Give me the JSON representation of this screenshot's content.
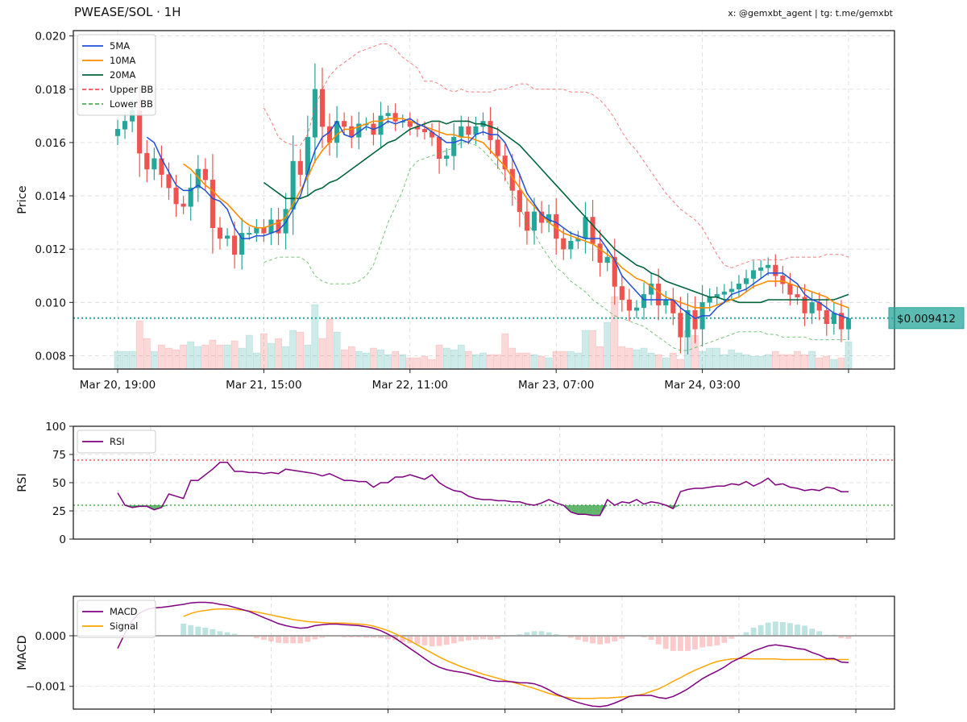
{
  "header": {
    "title": "PWEASE/SOL · 1H",
    "credit": "x: @gemxbt_agent | tg: t.me/gemxbt"
  },
  "price_tag": "$0.009412",
  "colors": {
    "up": "#26a69a",
    "down": "#ef5350",
    "ma5": "#1f4fd8",
    "ma10": "#ff8c00",
    "ma20": "#00643c",
    "bb_upper": "#ef5350",
    "bb_lower": "#4caf50",
    "rsi": "#800080",
    "macd": "#800080",
    "signal": "#ffa500",
    "current": "#26a69a"
  },
  "chart_data": [
    {
      "type": "candlestick",
      "ylabel": "Price",
      "ylim": [
        0.0075,
        0.0202
      ],
      "y_ticks": [
        "0.008",
        "0.010",
        "0.012",
        "0.014",
        "0.016",
        "0.018",
        "0.020"
      ],
      "y_tick_values": [
        0.008,
        0.01,
        0.012,
        0.014,
        0.016,
        0.018,
        0.02
      ],
      "x_tick_labels": [
        "Mar 20, 19:00",
        "Mar 21, 15:00",
        "Mar 22, 11:00",
        "Mar 23, 07:00",
        "Mar 24, 03:00"
      ],
      "x_tick_index": [
        0,
        20,
        40,
        60,
        80
      ],
      "current_price": 0.009412,
      "grid": true,
      "legend": {
        "position": "top-left",
        "entries": [
          {
            "key": "ma5",
            "label": "5MA",
            "style": "solid"
          },
          {
            "key": "ma10",
            "label": "10MA",
            "style": "solid"
          },
          {
            "key": "ma20",
            "label": "20MA",
            "style": "solid"
          },
          {
            "key": "bb_upper",
            "label": "Upper BB",
            "style": "dashed"
          },
          {
            "key": "bb_lower",
            "label": "Lower BB",
            "style": "dashed"
          }
        ]
      },
      "close_values": [
        0.0165,
        0.0168,
        0.0172,
        0.0156,
        0.015,
        0.0154,
        0.0148,
        0.0143,
        0.0137,
        0.0136,
        0.0143,
        0.015,
        0.0146,
        0.0128,
        0.0124,
        0.0125,
        0.0118,
        0.0126,
        0.0126,
        0.0128,
        0.0126,
        0.0131,
        0.0126,
        0.0135,
        0.0153,
        0.0148,
        0.0162,
        0.018,
        0.0166,
        0.016,
        0.0168,
        0.0166,
        0.0162,
        0.0167,
        0.0167,
        0.0163,
        0.017,
        0.0171,
        0.0168,
        0.0168,
        0.0166,
        0.0165,
        0.0164,
        0.0162,
        0.0154,
        0.0155,
        0.0162,
        0.0166,
        0.0163,
        0.0166,
        0.0168,
        0.0161,
        0.0155,
        0.015,
        0.0142,
        0.0134,
        0.0127,
        0.0134,
        0.013,
        0.0133,
        0.0124,
        0.012,
        0.0123,
        0.0124,
        0.0132,
        0.0122,
        0.0115,
        0.0117,
        0.0106,
        0.0101,
        0.0097,
        0.0098,
        0.0103,
        0.0107,
        0.0099,
        0.0101,
        0.0096,
        0.0087,
        0.0097,
        0.009,
        0.01,
        0.0102,
        0.0103,
        0.0104,
        0.0105,
        0.0107,
        0.0109,
        0.0112,
        0.0113,
        0.0114,
        0.011,
        0.0107,
        0.0103,
        0.0102,
        0.0096,
        0.01,
        0.0097,
        0.0092,
        0.0096,
        0.009,
        0.0094
      ],
      "ma5_values": [
        null,
        null,
        null,
        null,
        0.0162,
        0.016,
        0.0154,
        0.0149,
        0.0144,
        0.0142,
        0.0142,
        0.0144,
        0.0142,
        0.0139,
        0.0138,
        0.0135,
        0.0128,
        0.0124,
        0.0124,
        0.0125,
        0.0125,
        0.0126,
        0.0127,
        0.013,
        0.0135,
        0.014,
        0.0149,
        0.0157,
        0.0162,
        0.0164,
        0.0168,
        0.0163,
        0.0162,
        0.0164,
        0.0166,
        0.0165,
        0.0166,
        0.0168,
        0.0167,
        0.0168,
        0.0169,
        0.0167,
        0.0166,
        0.0164,
        0.0162,
        0.016,
        0.016,
        0.0161,
        0.016,
        0.0163,
        0.0164,
        0.0163,
        0.0163,
        0.016,
        0.0154,
        0.0148,
        0.0141,
        0.0137,
        0.0133,
        0.0131,
        0.013,
        0.0128,
        0.0126,
        0.0125,
        0.0124,
        0.0124,
        0.0124,
        0.012,
        0.0116,
        0.011,
        0.0107,
        0.0104,
        0.0101,
        0.0101,
        0.0101,
        0.0101,
        0.0101,
        0.0098,
        0.0096,
        0.0094,
        0.0095,
        0.0095,
        0.0098,
        0.01,
        0.0103,
        0.0104,
        0.0105,
        0.0107,
        0.0109,
        0.0111,
        0.0111,
        0.0111,
        0.0109,
        0.0107,
        0.0103,
        0.0101,
        0.01,
        0.0098,
        0.0096,
        0.0095,
        0.0094
      ],
      "ma10_values": [
        null,
        null,
        null,
        null,
        null,
        null,
        null,
        null,
        null,
        0.0152,
        0.015,
        0.0147,
        0.0144,
        0.0142,
        0.0139,
        0.0137,
        0.0134,
        0.0131,
        0.0129,
        0.0128,
        0.0128,
        0.0129,
        0.013,
        0.0132,
        0.0137,
        0.0142,
        0.0147,
        0.0153,
        0.0157,
        0.016,
        0.0163,
        0.0165,
        0.0165,
        0.0166,
        0.0167,
        0.0168,
        0.0168,
        0.0169,
        0.0169,
        0.0169,
        0.0168,
        0.0167,
        0.0166,
        0.0165,
        0.0164,
        0.0163,
        0.0163,
        0.0162,
        0.0162,
        0.0161,
        0.016,
        0.0157,
        0.0154,
        0.0151,
        0.0147,
        0.0143,
        0.0139,
        0.0136,
        0.0133,
        0.013,
        0.0128,
        0.0126,
        0.0125,
        0.0124,
        0.0123,
        0.0122,
        0.012,
        0.0118,
        0.0116,
        0.0113,
        0.0111,
        0.0109,
        0.0108,
        0.0106,
        0.0104,
        0.0102,
        0.0101,
        0.01,
        0.0099,
        0.0098,
        0.0098,
        0.0098,
        0.0099,
        0.01,
        0.0101,
        0.0102,
        0.0104,
        0.0106,
        0.0107,
        0.0108,
        0.0108,
        0.0108,
        0.0107,
        0.0106,
        0.0105,
        0.0104,
        0.0103,
        0.0102,
        0.01,
        0.0099,
        0.0098
      ],
      "ma20_values": [
        null,
        null,
        null,
        null,
        null,
        null,
        null,
        null,
        null,
        null,
        null,
        null,
        null,
        null,
        null,
        null,
        null,
        null,
        null,
        null,
        0.0145,
        0.0143,
        0.0141,
        0.0139,
        0.0139,
        0.0139,
        0.014,
        0.0142,
        0.0143,
        0.0145,
        0.0146,
        0.0148,
        0.015,
        0.0152,
        0.0154,
        0.0156,
        0.0158,
        0.016,
        0.0161,
        0.0163,
        0.0165,
        0.0166,
        0.0167,
        0.0168,
        0.0168,
        0.0167,
        0.0168,
        0.0168,
        0.0168,
        0.0167,
        0.0167,
        0.0166,
        0.0165,
        0.0163,
        0.0161,
        0.0159,
        0.0156,
        0.0153,
        0.015,
        0.0147,
        0.0144,
        0.0141,
        0.0138,
        0.0135,
        0.0132,
        0.0129,
        0.0126,
        0.0123,
        0.012,
        0.0118,
        0.0116,
        0.0114,
        0.0113,
        0.0111,
        0.011,
        0.0108,
        0.0107,
        0.0106,
        0.0105,
        0.0104,
        0.0103,
        0.0102,
        0.0102,
        0.0101,
        0.0101,
        0.01,
        0.01,
        0.01,
        0.01,
        0.0101,
        0.0101,
        0.0101,
        0.0101,
        0.0101,
        0.0101,
        0.0101,
        0.0101,
        0.0101,
        0.0101,
        0.0102,
        0.0103
      ],
      "bb_upper_values": [
        null,
        null,
        null,
        null,
        null,
        null,
        null,
        null,
        null,
        null,
        null,
        null,
        null,
        null,
        null,
        null,
        null,
        null,
        null,
        null,
        0.0173,
        0.0168,
        0.0162,
        0.016,
        0.0159,
        0.0159,
        0.0163,
        0.0173,
        0.018,
        0.0185,
        0.0188,
        0.019,
        0.0192,
        0.0194,
        0.0195,
        0.0196,
        0.0197,
        0.0197,
        0.0195,
        0.0192,
        0.019,
        0.0188,
        0.0183,
        0.0183,
        0.0182,
        0.018,
        0.0179,
        0.018,
        0.0179,
        0.0179,
        0.0179,
        0.0179,
        0.018,
        0.018,
        0.0181,
        0.0182,
        0.0182,
        0.018,
        0.018,
        0.018,
        0.018,
        0.018,
        0.0179,
        0.0179,
        0.0179,
        0.0178,
        0.0176,
        0.0173,
        0.0169,
        0.0164,
        0.016,
        0.0157,
        0.0153,
        0.0149,
        0.0145,
        0.0141,
        0.0138,
        0.0135,
        0.0133,
        0.0131,
        0.0128,
        0.0123,
        0.0118,
        0.0114,
        0.0113,
        0.0114,
        0.0115,
        0.0116,
        0.0116,
        0.0116,
        0.0116,
        0.0116,
        0.0117,
        0.0117,
        0.0117,
        0.0117,
        0.0117,
        0.0118,
        0.0118,
        0.0118,
        0.0117
      ],
      "bb_lower_values": [
        null,
        null,
        null,
        null,
        null,
        null,
        null,
        null,
        null,
        null,
        null,
        null,
        null,
        null,
        null,
        null,
        null,
        null,
        null,
        null,
        0.0115,
        0.0116,
        0.0117,
        0.0117,
        0.0117,
        0.0117,
        0.0115,
        0.011,
        0.0108,
        0.0107,
        0.0107,
        0.0107,
        0.0107,
        0.0108,
        0.011,
        0.0114,
        0.0122,
        0.013,
        0.0136,
        0.0142,
        0.015,
        0.0153,
        0.0154,
        0.0155,
        0.0156,
        0.0157,
        0.0158,
        0.016,
        0.016,
        0.0159,
        0.0157,
        0.0154,
        0.0151,
        0.0147,
        0.0141,
        0.0136,
        0.013,
        0.0126,
        0.0121,
        0.0117,
        0.0113,
        0.0111,
        0.0108,
        0.0106,
        0.0104,
        0.0101,
        0.0099,
        0.0097,
        0.0095,
        0.0094,
        0.0093,
        0.0092,
        0.0091,
        0.0089,
        0.0087,
        0.0085,
        0.0083,
        0.0082,
        0.0082,
        0.0083,
        0.0084,
        0.0085,
        0.0086,
        0.0087,
        0.0088,
        0.0089,
        0.0089,
        0.0089,
        0.0089,
        0.0088,
        0.0088,
        0.0087,
        0.0087,
        0.0087,
        0.0087,
        0.0086,
        0.0086,
        0.0086,
        0.0086,
        0.0086,
        0.0086
      ],
      "volume_values": [
        22,
        22,
        22,
        60,
        38,
        22,
        30,
        26,
        24,
        30,
        34,
        28,
        30,
        36,
        30,
        30,
        35,
        26,
        42,
        20,
        44,
        32,
        38,
        28,
        48,
        46,
        30,
        80,
        38,
        62,
        46,
        24,
        28,
        22,
        20,
        26,
        24,
        18,
        22,
        18,
        14,
        14,
        16,
        12,
        30,
        26,
        24,
        30,
        22,
        18,
        20,
        18,
        18,
        44,
        26,
        20,
        20,
        18,
        16,
        14,
        22,
        22,
        22,
        20,
        48,
        48,
        28,
        58,
        90,
        28,
        26,
        24,
        26,
        20,
        18,
        14,
        20,
        12,
        48,
        42,
        22,
        26,
        26,
        18,
        24,
        20,
        18,
        16,
        16,
        18,
        22,
        18,
        18,
        22,
        18,
        22,
        14,
        16,
        12,
        14,
        34
      ]
    },
    {
      "type": "line",
      "ylabel": "RSI",
      "ylim": [
        0,
        100
      ],
      "y_ticks": [
        "0",
        "25",
        "50",
        "75",
        "100"
      ],
      "y_tick_values": [
        0,
        25,
        50,
        75,
        100
      ],
      "overbought": 70,
      "oversold": 30,
      "grid": true,
      "legend": {
        "position": "top-left",
        "entries": [
          {
            "key": "rsi",
            "label": "RSI"
          }
        ]
      },
      "series": [
        {
          "name": "RSI",
          "values": [
            41,
            30,
            28,
            29,
            29,
            26,
            28,
            40,
            38,
            36,
            52,
            52,
            57,
            62,
            68,
            68,
            60,
            60,
            59,
            59,
            58,
            59,
            58,
            62,
            61,
            60,
            59,
            58,
            56,
            58,
            55,
            52,
            52,
            51,
            51,
            46,
            50,
            50,
            55,
            55,
            57,
            55,
            53,
            57,
            50,
            46,
            43,
            42,
            38,
            36,
            35,
            35,
            34,
            34,
            33,
            33,
            31,
            30,
            32,
            35,
            32,
            30,
            24,
            22,
            22,
            21,
            21,
            35,
            30,
            33,
            32,
            35,
            31,
            33,
            32,
            30,
            27,
            42,
            44,
            45,
            45,
            46,
            47,
            47,
            49,
            48,
            51,
            47,
            50,
            54,
            48,
            49,
            46,
            45,
            43,
            44,
            43,
            46,
            45,
            42,
            42
          ]
        }
      ]
    },
    {
      "type": "line",
      "ylabel": "MACD",
      "ylim": [
        -0.00145,
        0.00078
      ],
      "y_ticks": [
        "0.000",
        "−0.001"
      ],
      "y_tick_values": [
        0.0,
        -0.001
      ],
      "grid": true,
      "legend": {
        "position": "top-left",
        "entries": [
          {
            "key": "macd",
            "label": "MACD"
          },
          {
            "key": "signal",
            "label": "Signal"
          }
        ]
      },
      "series": [
        {
          "name": "MACD",
          "values": [
            -0.00025,
            5e-05,
            0.0003,
            0.00045,
            0.00052,
            0.00055,
            0.00056,
            0.00058,
            0.0006,
            0.00062,
            0.00065,
            0.00066,
            0.00066,
            0.00065,
            0.00062,
            0.0006,
            0.00056,
            0.00052,
            0.00048,
            0.00042,
            0.00036,
            0.0003,
            0.00024,
            0.0002,
            0.00017,
            0.00015,
            0.00016,
            0.0002,
            0.00022,
            0.00023,
            0.00023,
            0.00022,
            0.00021,
            0.0002,
            0.00018,
            0.00015,
            0.0001,
            3e-05,
            -5e-05,
            -0.00015,
            -0.00025,
            -0.00035,
            -0.00045,
            -0.00055,
            -0.00062,
            -0.00067,
            -0.0007,
            -0.00072,
            -0.00075,
            -0.00079,
            -0.00083,
            -0.00088,
            -0.0009,
            -0.0009,
            -0.00091,
            -0.00093,
            -0.00093,
            -0.00095,
            -0.001,
            -0.00107,
            -0.00115,
            -0.00121,
            -0.00127,
            -0.00132,
            -0.00136,
            -0.00139,
            -0.0014,
            -0.00138,
            -0.00133,
            -0.00127,
            -0.0012,
            -0.00118,
            -0.00118,
            -0.00118,
            -0.00122,
            -0.00124,
            -0.0012,
            -0.00113,
            -0.00105,
            -0.00095,
            -0.00085,
            -0.00077,
            -0.0007,
            -0.00062,
            -0.00052,
            -0.00045,
            -0.00038,
            -0.0003,
            -0.00025,
            -0.0002,
            -0.00018,
            -0.0002,
            -0.00022,
            -0.00025,
            -0.00027,
            -0.00033,
            -0.00038,
            -0.00045,
            -0.00045,
            -0.00052,
            -0.00053
          ]
        },
        {
          "name": "Signal",
          "values": [
            null,
            null,
            null,
            null,
            null,
            null,
            null,
            null,
            null,
            0.00038,
            0.00044,
            0.00048,
            0.0005,
            0.00052,
            0.00053,
            0.00053,
            0.00052,
            0.00051,
            0.00049,
            0.00047,
            0.00044,
            0.00041,
            0.00038,
            0.00035,
            0.00032,
            0.0003,
            0.00028,
            0.00027,
            0.00026,
            0.00025,
            0.00025,
            0.00025,
            0.00024,
            0.00023,
            0.00022,
            0.00019,
            0.00015,
            0.0001,
            4e-05,
            -3e-05,
            -0.0001,
            -0.00018,
            -0.00026,
            -0.00034,
            -0.00042,
            -0.00049,
            -0.00055,
            -0.00061,
            -0.00066,
            -0.00071,
            -0.00076,
            -0.0008,
            -0.00084,
            -0.00088,
            -0.00092,
            -0.00096,
            -0.001,
            -0.00104,
            -0.00109,
            -0.00114,
            -0.00118,
            -0.00121,
            -0.00123,
            -0.00124,
            -0.00124,
            -0.00124,
            -0.00123,
            -0.00123,
            -0.00122,
            -0.00121,
            -0.0012,
            -0.00118,
            -0.00115,
            -0.0011,
            -0.00105,
            -0.00098,
            -0.0009,
            -0.00083,
            -0.00075,
            -0.00068,
            -0.00062,
            -0.00056,
            -0.00051,
            -0.00048,
            -0.00046,
            -0.00045,
            -0.00045,
            -0.00046,
            -0.00046,
            -0.00046,
            -0.00046,
            -0.00047,
            -0.00047,
            -0.00047,
            -0.00047,
            -0.00047,
            -0.00047,
            -0.00047,
            -0.00047,
            -0.00047,
            -0.00047
          ]
        }
      ]
    }
  ]
}
